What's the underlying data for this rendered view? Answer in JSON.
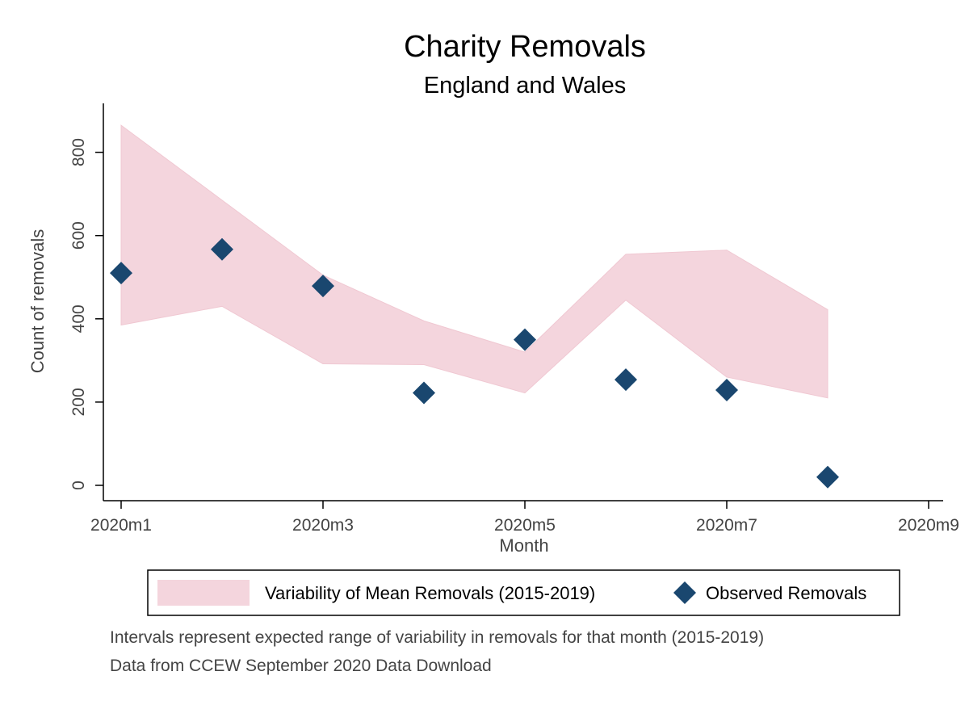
{
  "chart_data": {
    "type": "scatter",
    "title": "Charity Removals",
    "subtitle": "England and Wales",
    "xlabel": "Month",
    "ylabel": "Count of removals",
    "x_ticks": [
      "2020m1",
      "2020m3",
      "2020m5",
      "2020m7",
      "2020m9"
    ],
    "y_ticks": [
      0,
      200,
      400,
      600,
      800
    ],
    "ylim": [
      0,
      900
    ],
    "categories": [
      "2020m1",
      "2020m2",
      "2020m3",
      "2020m4",
      "2020m5",
      "2020m6",
      "2020m7",
      "2020m8"
    ],
    "series": [
      {
        "name": "Variability of Mean Removals (2015-2019)",
        "kind": "range-area",
        "color": "#f4d5dd",
        "lower": [
          385,
          430,
          292,
          290,
          222,
          445,
          260,
          210
        ],
        "upper": [
          865,
          685,
          505,
          395,
          320,
          555,
          565,
          422
        ]
      },
      {
        "name": "Observed Removals",
        "kind": "diamond-markers",
        "color": "#1a476f",
        "values": [
          510,
          567,
          479,
          222,
          350,
          254,
          229,
          20
        ]
      }
    ],
    "legend_position": "bottom",
    "notes": [
      "Intervals represent expected range of variability in removals for that month (2015-2019)",
      "Data from CCEW September 2020 Data Download"
    ]
  }
}
